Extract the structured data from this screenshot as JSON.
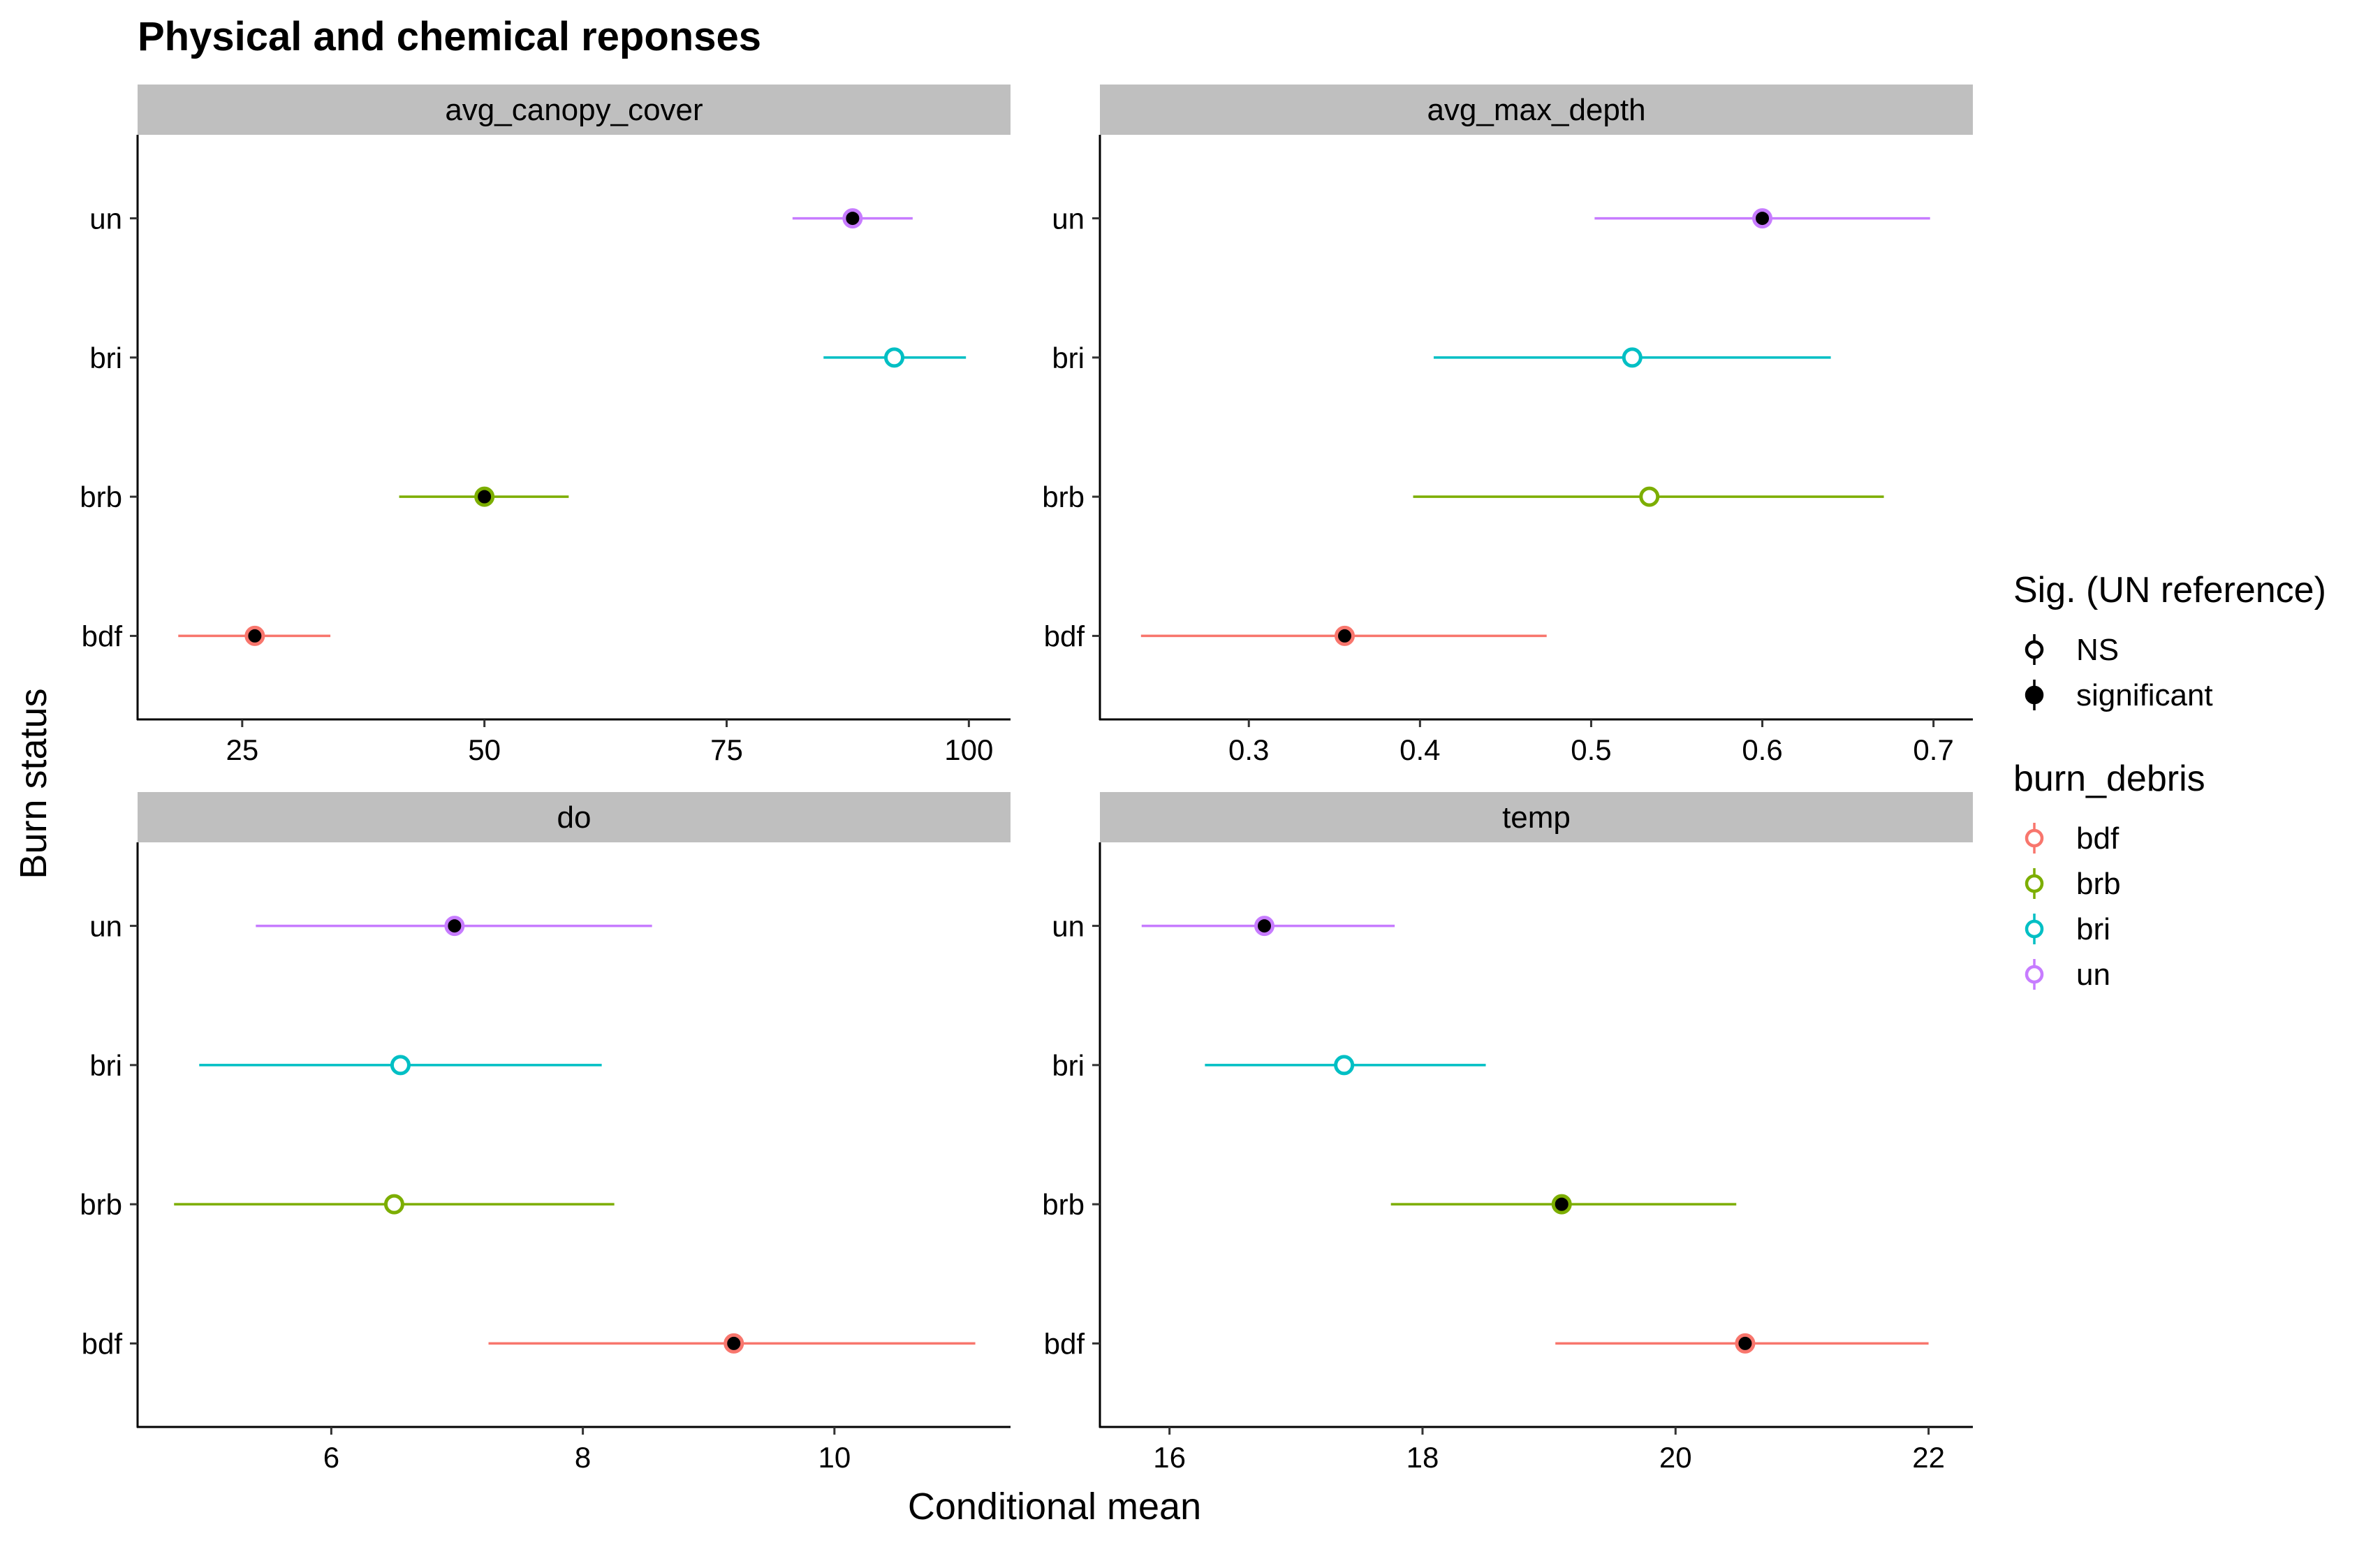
{
  "title": "Physical and chemical reponses",
  "xlabel": "Conditional mean",
  "ylabel": "Burn status",
  "legend_sig": {
    "title": "Sig. (UN reference)",
    "items": [
      {
        "label": "NS",
        "filled": false
      },
      {
        "label": "significant",
        "filled": true
      }
    ]
  },
  "legend_group": {
    "title": "burn_debris",
    "items": [
      {
        "label": "bdf",
        "color": "#F8766D"
      },
      {
        "label": "brb",
        "color": "#7CAE00"
      },
      {
        "label": "bri",
        "color": "#00BFC4"
      },
      {
        "label": "un",
        "color": "#C77CFF"
      }
    ]
  },
  "chart_data": [
    {
      "type": "scatter",
      "panel": "avg_canopy_cover",
      "categories": [
        "bdf",
        "brb",
        "bri",
        "un"
      ],
      "xlim": [
        14.2,
        104.3
      ],
      "xticks": [
        25,
        50,
        75,
        100
      ],
      "points": [
        {
          "group": "bdf",
          "mean": 26.3,
          "low": 18.4,
          "high": 34.1,
          "significant": true
        },
        {
          "group": "brb",
          "mean": 50.0,
          "low": 41.2,
          "high": 58.7,
          "significant": true
        },
        {
          "group": "bri",
          "mean": 92.3,
          "low": 85.0,
          "high": 99.7,
          "significant": false
        },
        {
          "group": "un",
          "mean": 88.0,
          "low": 81.8,
          "high": 94.2,
          "significant": true
        }
      ]
    },
    {
      "type": "scatter",
      "panel": "avg_max_depth",
      "categories": [
        "bdf",
        "brb",
        "bri",
        "un"
      ],
      "xlim": [
        0.213,
        0.723
      ],
      "xticks": [
        0.3,
        0.4,
        0.5,
        0.6,
        0.7
      ],
      "points": [
        {
          "group": "bdf",
          "mean": 0.356,
          "low": 0.237,
          "high": 0.474,
          "significant": true
        },
        {
          "group": "brb",
          "mean": 0.534,
          "low": 0.396,
          "high": 0.671,
          "significant": false
        },
        {
          "group": "bri",
          "mean": 0.524,
          "low": 0.408,
          "high": 0.64,
          "significant": false
        },
        {
          "group": "un",
          "mean": 0.6,
          "low": 0.502,
          "high": 0.698,
          "significant": true
        }
      ]
    },
    {
      "type": "scatter",
      "panel": "do",
      "categories": [
        "bdf",
        "brb",
        "bri",
        "un"
      ],
      "xlim": [
        4.46,
        11.4
      ],
      "xticks": [
        6,
        8,
        10
      ],
      "points": [
        {
          "group": "bdf",
          "mean": 9.2,
          "low": 7.25,
          "high": 11.12,
          "significant": true
        },
        {
          "group": "brb",
          "mean": 6.5,
          "low": 4.75,
          "high": 8.25,
          "significant": false
        },
        {
          "group": "bri",
          "mean": 6.55,
          "low": 4.95,
          "high": 8.15,
          "significant": false
        },
        {
          "group": "un",
          "mean": 6.98,
          "low": 5.4,
          "high": 8.55,
          "significant": true
        }
      ]
    },
    {
      "type": "scatter",
      "panel": "temp",
      "categories": [
        "bdf",
        "brb",
        "bri",
        "un"
      ],
      "xlim": [
        15.45,
        22.35
      ],
      "xticks": [
        16,
        18,
        20,
        22
      ],
      "points": [
        {
          "group": "bdf",
          "mean": 20.55,
          "low": 19.05,
          "high": 22.0,
          "significant": true
        },
        {
          "group": "brb",
          "mean": 19.1,
          "low": 17.75,
          "high": 20.48,
          "significant": true
        },
        {
          "group": "bri",
          "mean": 17.38,
          "low": 16.28,
          "high": 18.5,
          "significant": false
        },
        {
          "group": "un",
          "mean": 16.75,
          "low": 15.78,
          "high": 17.78,
          "significant": true
        }
      ]
    }
  ]
}
